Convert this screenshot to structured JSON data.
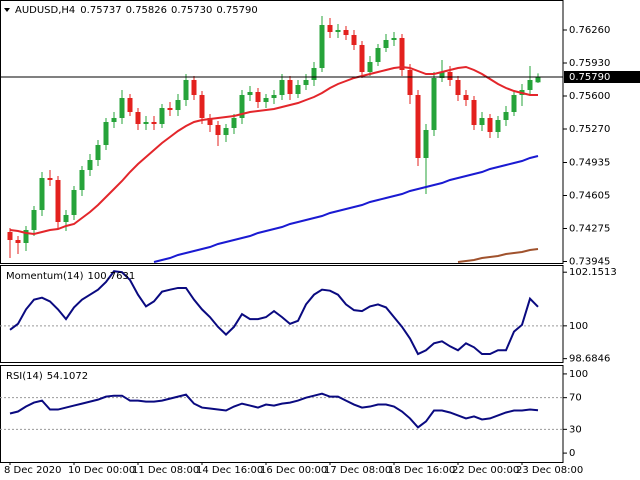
{
  "chart_data": [
    {
      "type": "candlestick",
      "title": "AUDUSD,H4",
      "ohlc_labels": [
        "0.75737",
        "0.75826",
        "0.75730",
        "0.75790"
      ],
      "up_color": "#26a33a",
      "down_color": "#e3211e",
      "open": [
        0.7424,
        0.7416,
        0.7413,
        0.7426,
        0.7446,
        0.7478,
        0.7476,
        0.7434,
        0.7441,
        0.7466,
        0.7486,
        0.7496,
        0.7511,
        0.7534,
        0.7538,
        0.7558,
        0.7544,
        0.7532,
        0.7534,
        0.7532,
        0.7548,
        0.7546,
        0.7556,
        0.7576,
        0.7561,
        0.7538,
        0.7531,
        0.7521,
        0.7528,
        0.7538,
        0.7561,
        0.7564,
        0.7554,
        0.7558,
        0.7561,
        0.7576,
        0.7562,
        0.7571,
        0.7576,
        0.7588,
        0.7631,
        0.7624,
        0.7626,
        0.7621,
        0.7611,
        0.7584,
        0.7594,
        0.7608,
        0.7616,
        0.7618,
        0.7586,
        0.7561,
        0.7498,
        0.7526,
        0.7578,
        0.7584,
        0.7576,
        0.7561,
        0.7556,
        0.7531,
        0.7538,
        0.7524,
        0.7536,
        0.7544,
        0.7561,
        0.7566,
        0.75737
      ],
      "high": [
        0.7428,
        0.742,
        0.743,
        0.745,
        0.7484,
        0.7486,
        0.748,
        0.7446,
        0.747,
        0.749,
        0.7502,
        0.7516,
        0.7538,
        0.7544,
        0.7566,
        0.7562,
        0.7548,
        0.754,
        0.754,
        0.7552,
        0.7554,
        0.7562,
        0.7582,
        0.758,
        0.7565,
        0.7542,
        0.7535,
        0.7532,
        0.7542,
        0.7566,
        0.757,
        0.7568,
        0.7562,
        0.7566,
        0.7582,
        0.758,
        0.7576,
        0.7582,
        0.7594,
        0.764,
        0.7638,
        0.7632,
        0.763,
        0.7626,
        0.7615,
        0.76,
        0.7612,
        0.7622,
        0.7624,
        0.7622,
        0.7592,
        0.7566,
        0.7532,
        0.7584,
        0.7596,
        0.759,
        0.758,
        0.7566,
        0.756,
        0.7544,
        0.7542,
        0.754,
        0.755,
        0.7566,
        0.7572,
        0.759,
        0.75826
      ],
      "low": [
        0.7398,
        0.7402,
        0.7405,
        0.742,
        0.744,
        0.747,
        0.7428,
        0.7425,
        0.7436,
        0.746,
        0.748,
        0.749,
        0.7506,
        0.7528,
        0.7532,
        0.754,
        0.7526,
        0.7526,
        0.7526,
        0.7528,
        0.754,
        0.754,
        0.755,
        0.7556,
        0.7532,
        0.7524,
        0.751,
        0.7514,
        0.7522,
        0.7532,
        0.7555,
        0.7548,
        0.7548,
        0.7552,
        0.7556,
        0.7556,
        0.7558,
        0.7566,
        0.757,
        0.7584,
        0.7618,
        0.7618,
        0.7616,
        0.7606,
        0.7578,
        0.758,
        0.759,
        0.7604,
        0.761,
        0.758,
        0.7552,
        0.749,
        0.7462,
        0.752,
        0.7574,
        0.757,
        0.7555,
        0.755,
        0.7526,
        0.7525,
        0.7518,
        0.7518,
        0.753,
        0.754,
        0.755,
        0.756,
        0.7573
      ],
      "close": [
        0.7416,
        0.7413,
        0.7426,
        0.7446,
        0.7478,
        0.7476,
        0.7434,
        0.7441,
        0.7466,
        0.7486,
        0.7496,
        0.7511,
        0.7534,
        0.7538,
        0.7558,
        0.7544,
        0.7532,
        0.7534,
        0.7532,
        0.7548,
        0.7546,
        0.7556,
        0.7576,
        0.7561,
        0.7538,
        0.7531,
        0.7521,
        0.7528,
        0.7538,
        0.7561,
        0.7564,
        0.7554,
        0.7558,
        0.7561,
        0.7576,
        0.7562,
        0.7571,
        0.7576,
        0.7588,
        0.7631,
        0.7624,
        0.7626,
        0.7621,
        0.7611,
        0.7584,
        0.7594,
        0.7608,
        0.7616,
        0.7618,
        0.7586,
        0.7561,
        0.7498,
        0.7526,
        0.7578,
        0.7584,
        0.7576,
        0.7561,
        0.7556,
        0.7531,
        0.7538,
        0.7524,
        0.7536,
        0.7544,
        0.7561,
        0.7566,
        0.7576,
        0.7579
      ],
      "overlays": [
        {
          "color": "#e3262b",
          "values": [
            0.7426,
            0.7425,
            0.7423,
            0.7422,
            0.7424,
            0.7426,
            0.7427,
            0.743,
            0.7432,
            0.7438,
            0.7444,
            0.7451,
            0.7459,
            0.7467,
            0.7475,
            0.7484,
            0.7492,
            0.7499,
            0.7506,
            0.7513,
            0.7519,
            0.7525,
            0.753,
            0.7534,
            0.7536,
            0.7537,
            0.7538,
            0.7539,
            0.754,
            0.7542,
            0.7544,
            0.7545,
            0.7546,
            0.7547,
            0.7549,
            0.7551,
            0.7553,
            0.7556,
            0.7559,
            0.7563,
            0.7568,
            0.7572,
            0.7575,
            0.7578,
            0.758,
            0.7582,
            0.7584,
            0.7586,
            0.7588,
            0.7589,
            0.7588,
            0.7585,
            0.7582,
            0.7582,
            0.7584,
            0.7586,
            0.7588,
            0.7589,
            0.7586,
            0.7582,
            0.7577,
            0.7572,
            0.7568,
            0.7565,
            0.7563,
            0.7561,
            0.7561
          ]
        },
        {
          "color": "#1a1ad2",
          "values": [
            null,
            null,
            null,
            null,
            null,
            null,
            null,
            null,
            null,
            null,
            null,
            null,
            null,
            null,
            null,
            null,
            null,
            null,
            0.7394,
            0.7396,
            0.7398,
            0.7401,
            0.7403,
            0.7405,
            0.7407,
            0.7409,
            0.7412,
            0.7414,
            0.7416,
            0.7418,
            0.742,
            0.7423,
            0.7425,
            0.7427,
            0.7429,
            0.7432,
            0.7434,
            0.7436,
            0.7438,
            0.744,
            0.7443,
            0.7445,
            0.7447,
            0.7449,
            0.7451,
            0.7454,
            0.7456,
            0.7458,
            0.746,
            0.7462,
            0.7465,
            0.7467,
            0.7469,
            0.7471,
            0.7473,
            0.7476,
            0.7478,
            0.748,
            0.7482,
            0.7484,
            0.7487,
            0.7489,
            0.7491,
            0.7493,
            0.7495,
            0.7498,
            0.75
          ]
        },
        {
          "color": "#a0522d",
          "values": [
            null,
            null,
            null,
            null,
            null,
            null,
            null,
            null,
            null,
            null,
            null,
            null,
            null,
            null,
            null,
            null,
            null,
            null,
            null,
            null,
            null,
            null,
            null,
            null,
            null,
            null,
            null,
            null,
            null,
            null,
            null,
            null,
            null,
            null,
            null,
            null,
            null,
            null,
            null,
            null,
            null,
            null,
            null,
            null,
            null,
            null,
            null,
            null,
            null,
            null,
            null,
            null,
            null,
            null,
            null,
            null,
            0.7394,
            0.7395,
            0.7396,
            0.7398,
            0.7399,
            0.74,
            0.7402,
            0.7403,
            0.7404,
            0.7406,
            0.7407
          ]
        }
      ],
      "current_price": {
        "value": 0.7579,
        "label": "0.75790"
      },
      "ylim": [
        0.7393,
        0.7655
      ],
      "yticks": [
        {
          "value": 0.7626,
          "label": "0.76260"
        },
        {
          "value": 0.7593,
          "label": "0.75930"
        },
        {
          "value": 0.756,
          "label": "0.75600"
        },
        {
          "value": 0.7527,
          "label": "0.75270"
        },
        {
          "value": 0.74935,
          "label": "0.74935"
        },
        {
          "value": 0.74605,
          "label": "0.74605"
        },
        {
          "value": 0.74275,
          "label": "0.74275"
        },
        {
          "value": 0.73945,
          "label": "0.73945"
        }
      ]
    },
    {
      "type": "line",
      "title": "Momentum(14)",
      "color": "#0a0a80",
      "values": [
        99.84,
        100.08,
        100.66,
        101.05,
        101.13,
        100.98,
        100.66,
        100.27,
        100.74,
        101.05,
        101.25,
        101.45,
        101.76,
        102.19,
        102.15,
        101.84,
        101.25,
        100.78,
        100.98,
        101.37,
        101.45,
        101.52,
        101.52,
        101.05,
        100.66,
        100.35,
        99.96,
        99.65,
        99.96,
        100.47,
        100.27,
        100.27,
        100.35,
        100.59,
        100.35,
        100.08,
        100.2,
        100.86,
        101.25,
        101.45,
        101.41,
        101.25,
        100.86,
        100.63,
        100.59,
        100.78,
        100.86,
        100.74,
        100.35,
        99.96,
        99.49,
        98.87,
        99.02,
        99.3,
        99.38,
        99.18,
        99.02,
        99.3,
        99.14,
        98.87,
        98.87,
        99.02,
        99.02,
        99.77,
        100.04,
        101.09,
        100.7631
      ],
      "ylim": [
        98.55,
        102.4
      ],
      "yticks": [
        102.1513,
        100,
        98.6846
      ]
    },
    {
      "type": "line",
      "title": "RSI(14)",
      "color": "#0a0a80",
      "values": [
        50.0,
        52.5,
        58.8,
        63.8,
        66.3,
        55.0,
        55.0,
        57.5,
        60.0,
        62.5,
        65.0,
        67.5,
        71.3,
        72.5,
        72.5,
        66.3,
        66.3,
        65.0,
        65.0,
        66.3,
        68.8,
        71.3,
        73.8,
        62.5,
        57.5,
        56.3,
        55.0,
        53.8,
        58.8,
        62.5,
        60.0,
        57.5,
        61.3,
        60.0,
        62.5,
        63.8,
        66.3,
        70.0,
        72.5,
        75.0,
        71.3,
        71.3,
        66.3,
        61.3,
        57.5,
        58.8,
        61.3,
        61.3,
        58.8,
        52.5,
        43.8,
        32.5,
        40.0,
        53.8,
        53.8,
        51.3,
        47.5,
        43.8,
        46.3,
        42.5,
        43.8,
        47.5,
        51.3,
        53.8,
        53.8,
        55.0,
        54.1072
      ],
      "ylim": [
        -11.25,
        110
      ],
      "yticks": [
        100,
        70,
        30,
        0
      ],
      "categories": [
        "8 Dec 2020",
        null,
        null,
        null,
        null,
        null,
        null,
        null,
        "10 Dec 00:00",
        null,
        null,
        null,
        null,
        null,
        null,
        null,
        "11 Dec 08:00",
        null,
        null,
        null,
        null,
        null,
        null,
        null,
        "14 Dec 16:00",
        null,
        null,
        null,
        null,
        null,
        null,
        null,
        "16 Dec 00:00",
        null,
        null,
        null,
        null,
        null,
        null,
        null,
        "17 Dec 08:00",
        null,
        null,
        null,
        null,
        null,
        null,
        null,
        "18 Dec 16:00",
        null,
        null,
        null,
        null,
        null,
        null,
        null,
        "22 Dec 00:00",
        null,
        null,
        null,
        null,
        null,
        null,
        null,
        "23 Dec 08:00",
        null,
        null
      ]
    }
  ]
}
